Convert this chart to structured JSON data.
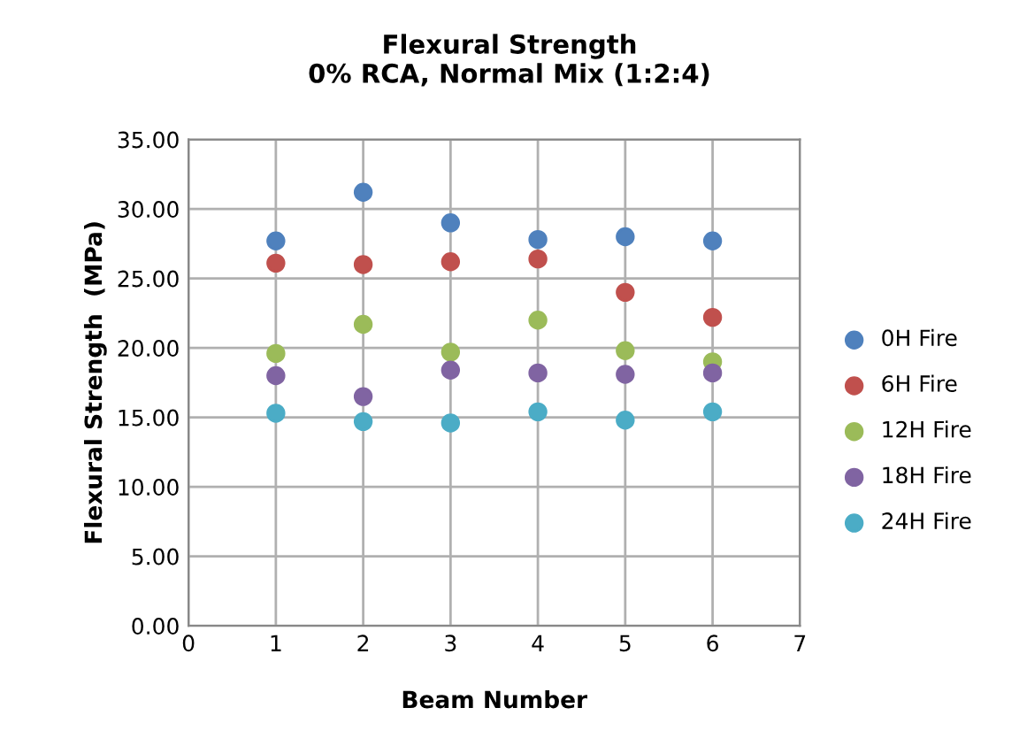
{
  "chart_data": {
    "type": "scatter",
    "title": "Flexural Strength\n0% RCA, Normal Mix (1:2:4)",
    "xlabel": "Beam Number",
    "ylabel": "Flexural Strength  (MPa)",
    "x": [
      1,
      2,
      3,
      4,
      5,
      6
    ],
    "series": [
      {
        "name": "0H Fire",
        "color": "#4f81bd",
        "values": [
          27.7,
          31.2,
          29.0,
          27.8,
          28.0,
          27.7
        ]
      },
      {
        "name": "6H Fire",
        "color": "#c0504d",
        "values": [
          26.1,
          26.0,
          26.2,
          26.4,
          24.0,
          22.2
        ]
      },
      {
        "name": "12H Fire",
        "color": "#9bbb59",
        "values": [
          19.6,
          21.7,
          19.7,
          22.0,
          19.8,
          19.0
        ]
      },
      {
        "name": "18H Fire",
        "color": "#8064a2",
        "values": [
          18.0,
          16.5,
          18.4,
          18.2,
          18.1,
          18.2
        ]
      },
      {
        "name": "24H Fire",
        "color": "#4bacc6",
        "values": [
          15.3,
          14.7,
          14.6,
          15.4,
          14.8,
          15.4
        ]
      }
    ],
    "xlim": [
      0,
      7
    ],
    "xticks": [
      0,
      1,
      2,
      3,
      4,
      5,
      6,
      7
    ],
    "ylim": [
      0,
      35
    ],
    "yticks": [
      {
        "value": 0,
        "label": "0.00"
      },
      {
        "value": 5,
        "label": "5.00"
      },
      {
        "value": 10,
        "label": "10.00"
      },
      {
        "value": 15,
        "label": "15.00"
      },
      {
        "value": 20,
        "label": "20.00"
      },
      {
        "value": 25,
        "label": "25.00"
      },
      {
        "value": 30,
        "label": "30.00"
      },
      {
        "value": 35,
        "label": "35.00"
      }
    ],
    "grid": true,
    "legend": "right",
    "marker": "circle"
  }
}
